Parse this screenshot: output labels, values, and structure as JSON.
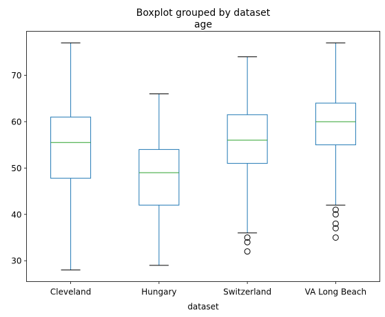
{
  "chart_data": {
    "type": "boxplot",
    "suptitle": "Boxplot grouped by dataset",
    "title": "age",
    "xlabel": "dataset",
    "ylabel": "",
    "ylim": [
      25.5,
      79.5
    ],
    "yticks": [
      30,
      40,
      50,
      60,
      70
    ],
    "grid": false,
    "categories": [
      "Cleveland",
      "Hungary",
      "Switzerland",
      "VA Long Beach"
    ],
    "boxes": [
      {
        "whislo": 28,
        "q1": 47.8,
        "med": 55.5,
        "q3": 61.0,
        "whishi": 77,
        "fliers": []
      },
      {
        "whislo": 29,
        "q1": 42.0,
        "med": 49.0,
        "q3": 54.0,
        "whishi": 66,
        "fliers": []
      },
      {
        "whislo": 36,
        "q1": 51.0,
        "med": 56.0,
        "q3": 61.5,
        "whishi": 74,
        "fliers": [
          35,
          34,
          32
        ]
      },
      {
        "whislo": 42,
        "q1": 55.0,
        "med": 60.0,
        "q3": 64.0,
        "whishi": 77,
        "fliers": [
          41,
          40,
          38,
          37,
          35
        ]
      }
    ],
    "colors": {
      "box": "#1f77b4",
      "median": "#2ca02c",
      "whisker": "#1f77b4",
      "cap": "#000000",
      "flier": "#000000"
    }
  }
}
